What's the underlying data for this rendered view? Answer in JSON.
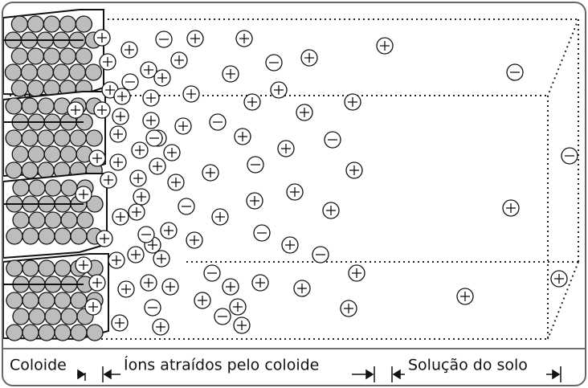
{
  "labels": {
    "colloid": "Coloide",
    "attracted_ions": "Íons atraídos pelo coloide",
    "soil_solution": "Solução do solo"
  }
}
